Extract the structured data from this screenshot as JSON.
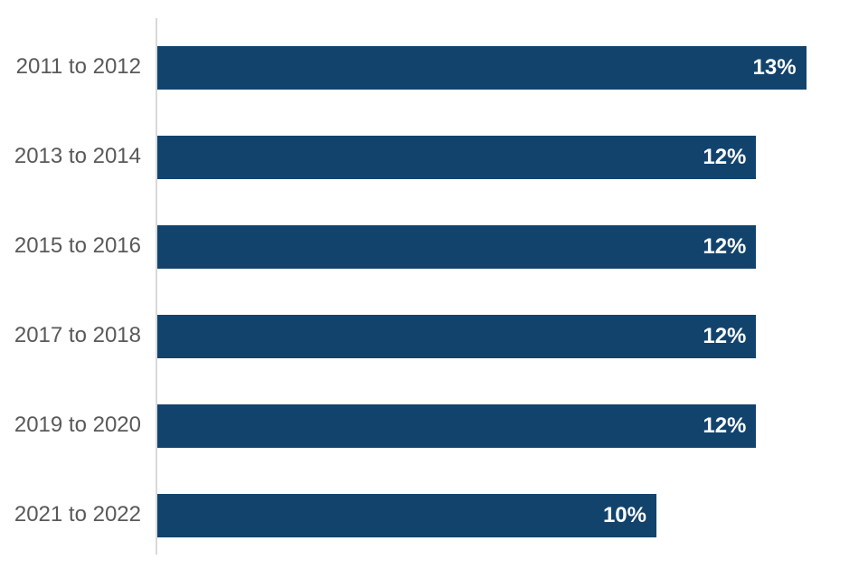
{
  "chart_data": {
    "type": "bar",
    "orientation": "horizontal",
    "title": "",
    "categories": [
      "2011 to 2012",
      "2013 to 2014",
      "2015 to 2016",
      "2017 to 2018",
      "2019 to 2020",
      "2021 to 2022"
    ],
    "values": [
      13,
      12,
      12,
      12,
      12,
      10
    ],
    "value_labels": [
      "13%",
      "12%",
      "12%",
      "12%",
      "12%",
      "10%"
    ],
    "value_label_position": "inside-end",
    "xlim": [
      0,
      14.3
    ],
    "grid": false,
    "legend": "none",
    "bar_color": "#12436D",
    "value_label_color": "#FFFFFF",
    "category_label_color": "#595959",
    "axis_line_color": "#D9D9D9"
  }
}
